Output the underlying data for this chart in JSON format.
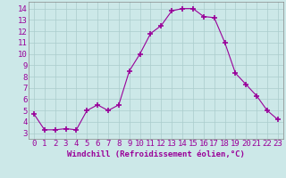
{
  "x": [
    0,
    1,
    2,
    3,
    4,
    5,
    6,
    7,
    8,
    9,
    10,
    11,
    12,
    13,
    14,
    15,
    16,
    17,
    18,
    19,
    20,
    21,
    22,
    23
  ],
  "y": [
    4.7,
    3.3,
    3.3,
    3.4,
    3.3,
    5.0,
    5.5,
    5.0,
    5.5,
    8.5,
    10.0,
    11.8,
    12.5,
    13.8,
    14.0,
    14.0,
    13.3,
    13.2,
    11.0,
    8.3,
    7.3,
    6.3,
    5.0,
    4.2
  ],
  "line_color": "#990099",
  "marker": "+",
  "marker_size": 4,
  "marker_lw": 1.2,
  "bg_color": "#cce8e8",
  "grid_color": "#aacccc",
  "xlabel": "Windchill (Refroidissement éolien,°C)",
  "xlabel_color": "#990099",
  "ylabel_ticks": [
    3,
    4,
    5,
    6,
    7,
    8,
    9,
    10,
    11,
    12,
    13,
    14
  ],
  "xtick_labels": [
    "0",
    "1",
    "2",
    "3",
    "4",
    "5",
    "6",
    "7",
    "8",
    "9",
    "10",
    "11",
    "12",
    "13",
    "14",
    "15",
    "16",
    "17",
    "18",
    "19",
    "20",
    "21",
    "22",
    "23"
  ],
  "ylim": [
    2.5,
    14.6
  ],
  "xlim": [
    -0.5,
    23.5
  ],
  "tick_color": "#990099",
  "tick_label_color": "#990099",
  "font_size_xlabel": 6.5,
  "font_size_ticks": 6.5
}
